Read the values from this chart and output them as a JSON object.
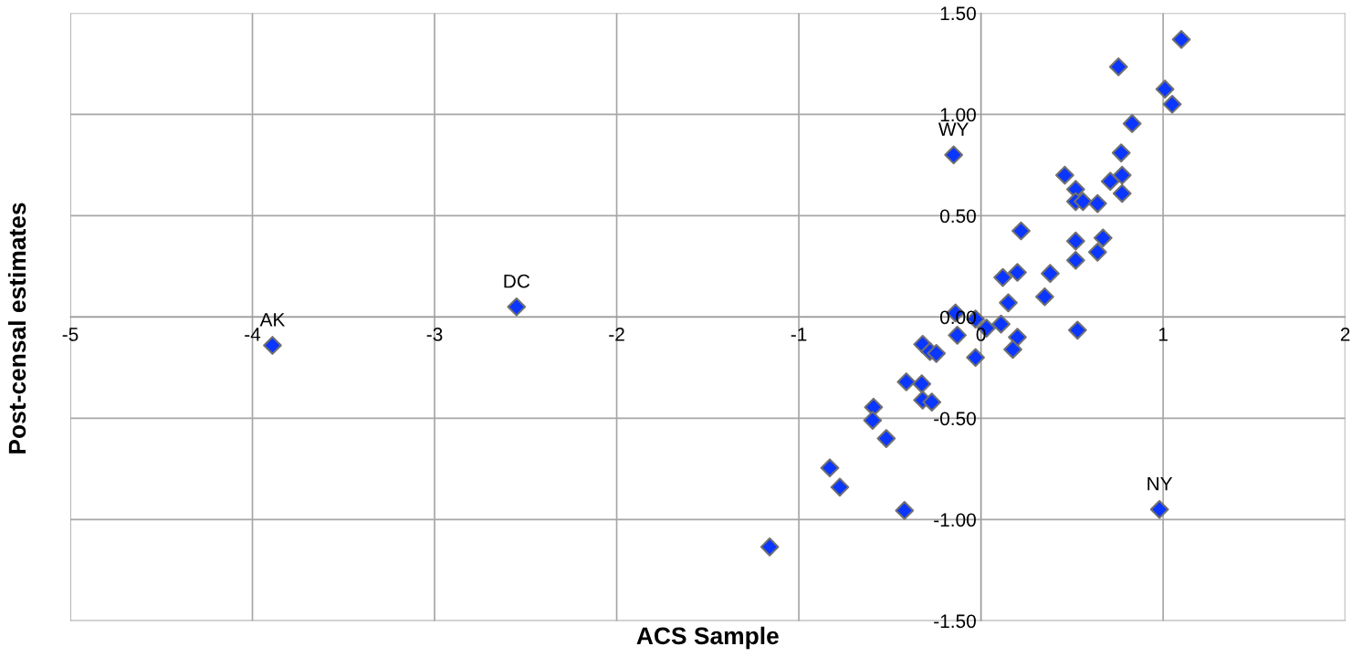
{
  "chart_data": {
    "type": "scatter",
    "xlabel": "ACS Sample",
    "ylabel": "Post-censal estimates",
    "marker": "diamond",
    "grid": true,
    "color": "#0a36ff",
    "x": [
      -3.89,
      -2.55,
      -0.15,
      0.98,
      1.1,
      0.755,
      1.01,
      1.05,
      0.83,
      0.77,
      0.46,
      0.775,
      0.71,
      0.52,
      0.775,
      0.52,
      0.56,
      0.64,
      0.22,
      0.52,
      0.67,
      0.52,
      0.64,
      0.12,
      0.2,
      0.38,
      0.35,
      0.15,
      -0.14,
      -0.03,
      0.03,
      0.11,
      0.53,
      -0.13,
      0.2,
      0.175,
      -0.03,
      -0.32,
      -0.28,
      -0.245,
      -0.41,
      -0.325,
      -0.32,
      -0.27,
      -0.59,
      -0.595,
      -0.52,
      -0.83,
      -0.775,
      -0.42,
      -1.16
    ],
    "values": [
      -0.14,
      0.05,
      0.8,
      -0.95,
      1.37,
      1.235,
      1.125,
      1.05,
      0.955,
      0.81,
      0.7,
      0.7,
      0.67,
      0.63,
      0.61,
      0.57,
      0.57,
      0.56,
      0.425,
      0.375,
      0.39,
      0.28,
      0.32,
      0.195,
      0.22,
      0.215,
      0.1,
      0.07,
      0.02,
      -0.01,
      -0.055,
      -0.035,
      -0.065,
      -0.09,
      -0.1,
      -0.16,
      -0.2,
      -0.135,
      -0.17,
      -0.18,
      -0.32,
      -0.33,
      -0.41,
      -0.42,
      -0.445,
      -0.51,
      -0.6,
      -0.745,
      -0.84,
      -0.955,
      -1.135
    ],
    "xlim": [
      -5,
      2
    ],
    "xticks": [
      -5,
      -4,
      -3,
      -2,
      -1,
      0,
      1,
      2
    ],
    "ylim": [
      -1.5,
      1.5
    ],
    "yticks": [
      {
        "value": -1.5,
        "label": "-1.50"
      },
      {
        "value": -1.0,
        "label": "-1.00"
      },
      {
        "value": -0.5,
        "label": "-0.50"
      },
      {
        "value": 0,
        "label": "0.00"
      },
      {
        "value": 0.5,
        "label": "0.50"
      },
      {
        "value": 1.0,
        "label": "1.00"
      },
      {
        "value": 1.5,
        "label": "1.50"
      }
    ],
    "annotations": [
      {
        "text": "AK",
        "x": -3.89,
        "y": -0.14
      },
      {
        "text": "DC",
        "x": -2.55,
        "y": 0.05
      },
      {
        "text": "WY",
        "x": -0.15,
        "y": 0.8
      },
      {
        "text": "NY",
        "x": 0.98,
        "y": -0.95
      }
    ]
  }
}
